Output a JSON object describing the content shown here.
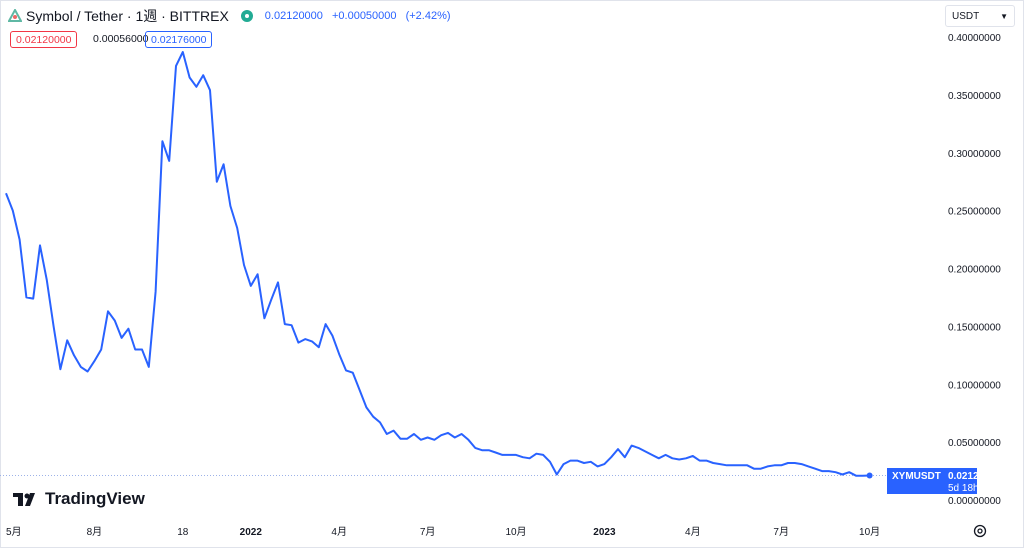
{
  "header": {
    "title": "Symbol / Tether · 1週 · BITTREX",
    "last": "0.02120000",
    "change": "+0.00050000",
    "change_pct": "(+2.42%)"
  },
  "prices": {
    "bid": "0.02120000",
    "spread": "0.00056000",
    "ask": "0.02176000"
  },
  "currency": {
    "selected": "USDT"
  },
  "brand": {
    "name": "TradingView"
  },
  "last_label": {
    "symbol": "XYMUSDT",
    "price": "0.02120000",
    "countdown": "5d 18h"
  },
  "colors": {
    "line": "#2962ff",
    "bid": "#f23645",
    "ask": "#2962ff",
    "live": "#22ab94"
  },
  "chart_data": {
    "type": "line",
    "y_ticks": [
      "0.40000000",
      "0.35000000",
      "0.30000000",
      "0.25000000",
      "0.20000000",
      "0.15000000",
      "0.10000000",
      "0.05000000",
      "0.00000000"
    ],
    "x_ticks": [
      {
        "label": "5月",
        "i": 0
      },
      {
        "label": "8月",
        "i": 13
      },
      {
        "label": "18",
        "i": 26
      },
      {
        "label": "2022",
        "i": 36
      },
      {
        "label": "4月",
        "i": 49
      },
      {
        "label": "7月",
        "i": 62
      },
      {
        "label": "10月",
        "i": 75
      },
      {
        "label": "2023",
        "i": 88
      },
      {
        "label": "4月",
        "i": 101
      },
      {
        "label": "7月",
        "i": 114
      },
      {
        "label": "10月",
        "i": 127
      }
    ],
    "ylim": [
      0,
      0.4
    ],
    "values": [
      0.265,
      0.25,
      0.225,
      0.175,
      0.174,
      0.22,
      0.19,
      0.15,
      0.113,
      0.138,
      0.125,
      0.115,
      0.111,
      0.12,
      0.13,
      0.163,
      0.155,
      0.14,
      0.148,
      0.13,
      0.13,
      0.115,
      0.18,
      0.31,
      0.293,
      0.375,
      0.387,
      0.365,
      0.357,
      0.367,
      0.354,
      0.275,
      0.29,
      0.254,
      0.235,
      0.203,
      0.185,
      0.195,
      0.157,
      0.173,
      0.188,
      0.152,
      0.151,
      0.136,
      0.139,
      0.137,
      0.132,
      0.152,
      0.142,
      0.126,
      0.112,
      0.11,
      0.095,
      0.08,
      0.072,
      0.067,
      0.057,
      0.06,
      0.053,
      0.053,
      0.057,
      0.052,
      0.054,
      0.052,
      0.056,
      0.058,
      0.054,
      0.057,
      0.052,
      0.045,
      0.043,
      0.043,
      0.041,
      0.039,
      0.039,
      0.039,
      0.037,
      0.036,
      0.04,
      0.039,
      0.033,
      0.022,
      0.031,
      0.034,
      0.034,
      0.032,
      0.033,
      0.029,
      0.031,
      0.037,
      0.044,
      0.037,
      0.047,
      0.045,
      0.042,
      0.039,
      0.036,
      0.039,
      0.036,
      0.035,
      0.036,
      0.038,
      0.034,
      0.034,
      0.032,
      0.031,
      0.03,
      0.03,
      0.03,
      0.03,
      0.027,
      0.027,
      0.029,
      0.03,
      0.03,
      0.032,
      0.032,
      0.031,
      0.029,
      0.027,
      0.025,
      0.025,
      0.024,
      0.022,
      0.024,
      0.021,
      0.021,
      0.0212
    ]
  }
}
